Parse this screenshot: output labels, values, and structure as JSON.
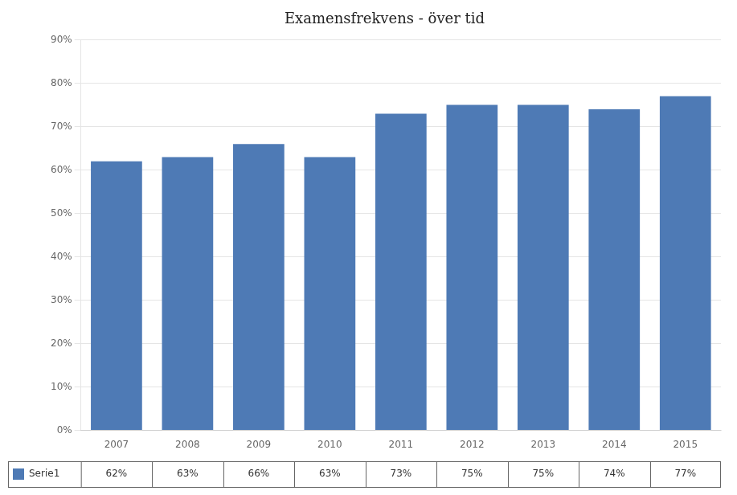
{
  "chart_data": {
    "type": "bar",
    "title": "Examensfrekvens - över tid",
    "categories": [
      "2007",
      "2008",
      "2009",
      "2010",
      "2011",
      "2012",
      "2013",
      "2014",
      "2015"
    ],
    "series": [
      {
        "name": "Serie1",
        "color": "#4e7ab5",
        "values": [
          0.62,
          0.63,
          0.66,
          0.63,
          0.73,
          0.75,
          0.75,
          0.74,
          0.77
        ],
        "value_labels": [
          "62%",
          "63%",
          "66%",
          "63%",
          "73%",
          "75%",
          "75%",
          "74%",
          "77%"
        ]
      }
    ],
    "ylim": [
      0.0,
      0.9
    ],
    "yticks": [
      {
        "value": 0.0,
        "label": "0%"
      },
      {
        "value": 0.1,
        "label": "10%"
      },
      {
        "value": 0.2,
        "label": "20%"
      },
      {
        "value": 0.3,
        "label": "30%"
      },
      {
        "value": 0.4,
        "label": "40%"
      },
      {
        "value": 0.5,
        "label": "50%"
      },
      {
        "value": 0.6,
        "label": "60%"
      },
      {
        "value": 0.7,
        "label": "70%"
      },
      {
        "value": 0.8,
        "label": "80%"
      },
      {
        "value": 0.9,
        "label": "90%"
      }
    ],
    "grid": true,
    "legend": "bottom",
    "data_labels": true
  }
}
